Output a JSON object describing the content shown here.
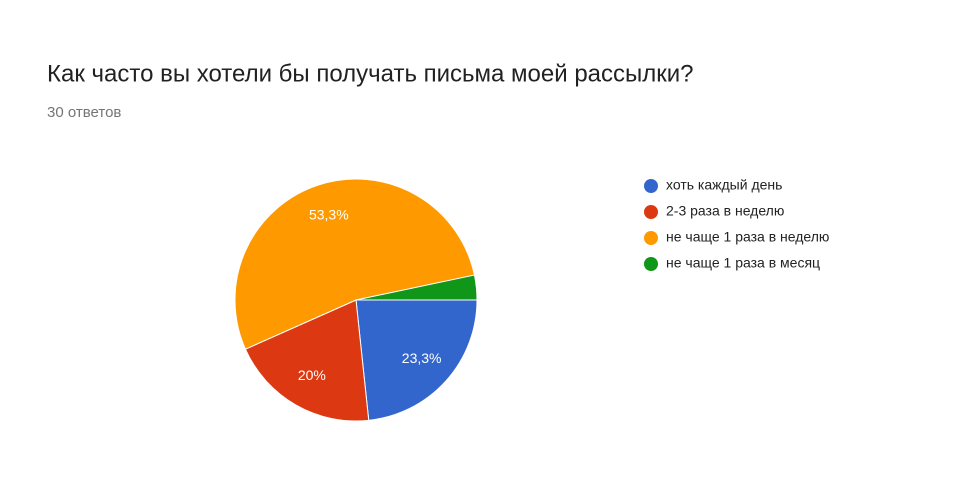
{
  "chart_data": {
    "type": "pie",
    "title": "Как часто вы хотели бы получать письма моей рассылки?",
    "subtitle": "30 ответов",
    "categories": [
      "хоть каждый день",
      "2-3 раза в неделю",
      "не чаще 1 раза в неделю",
      "не чаще 1 раза в месяц"
    ],
    "values": [
      23.3,
      20,
      53.3,
      3.3
    ],
    "value_labels": [
      "23,3%",
      "20%",
      "53,3%",
      null
    ],
    "colors": [
      "#3366cc",
      "#dc3912",
      "#ff9900",
      "#109618"
    ],
    "legend": "right"
  }
}
